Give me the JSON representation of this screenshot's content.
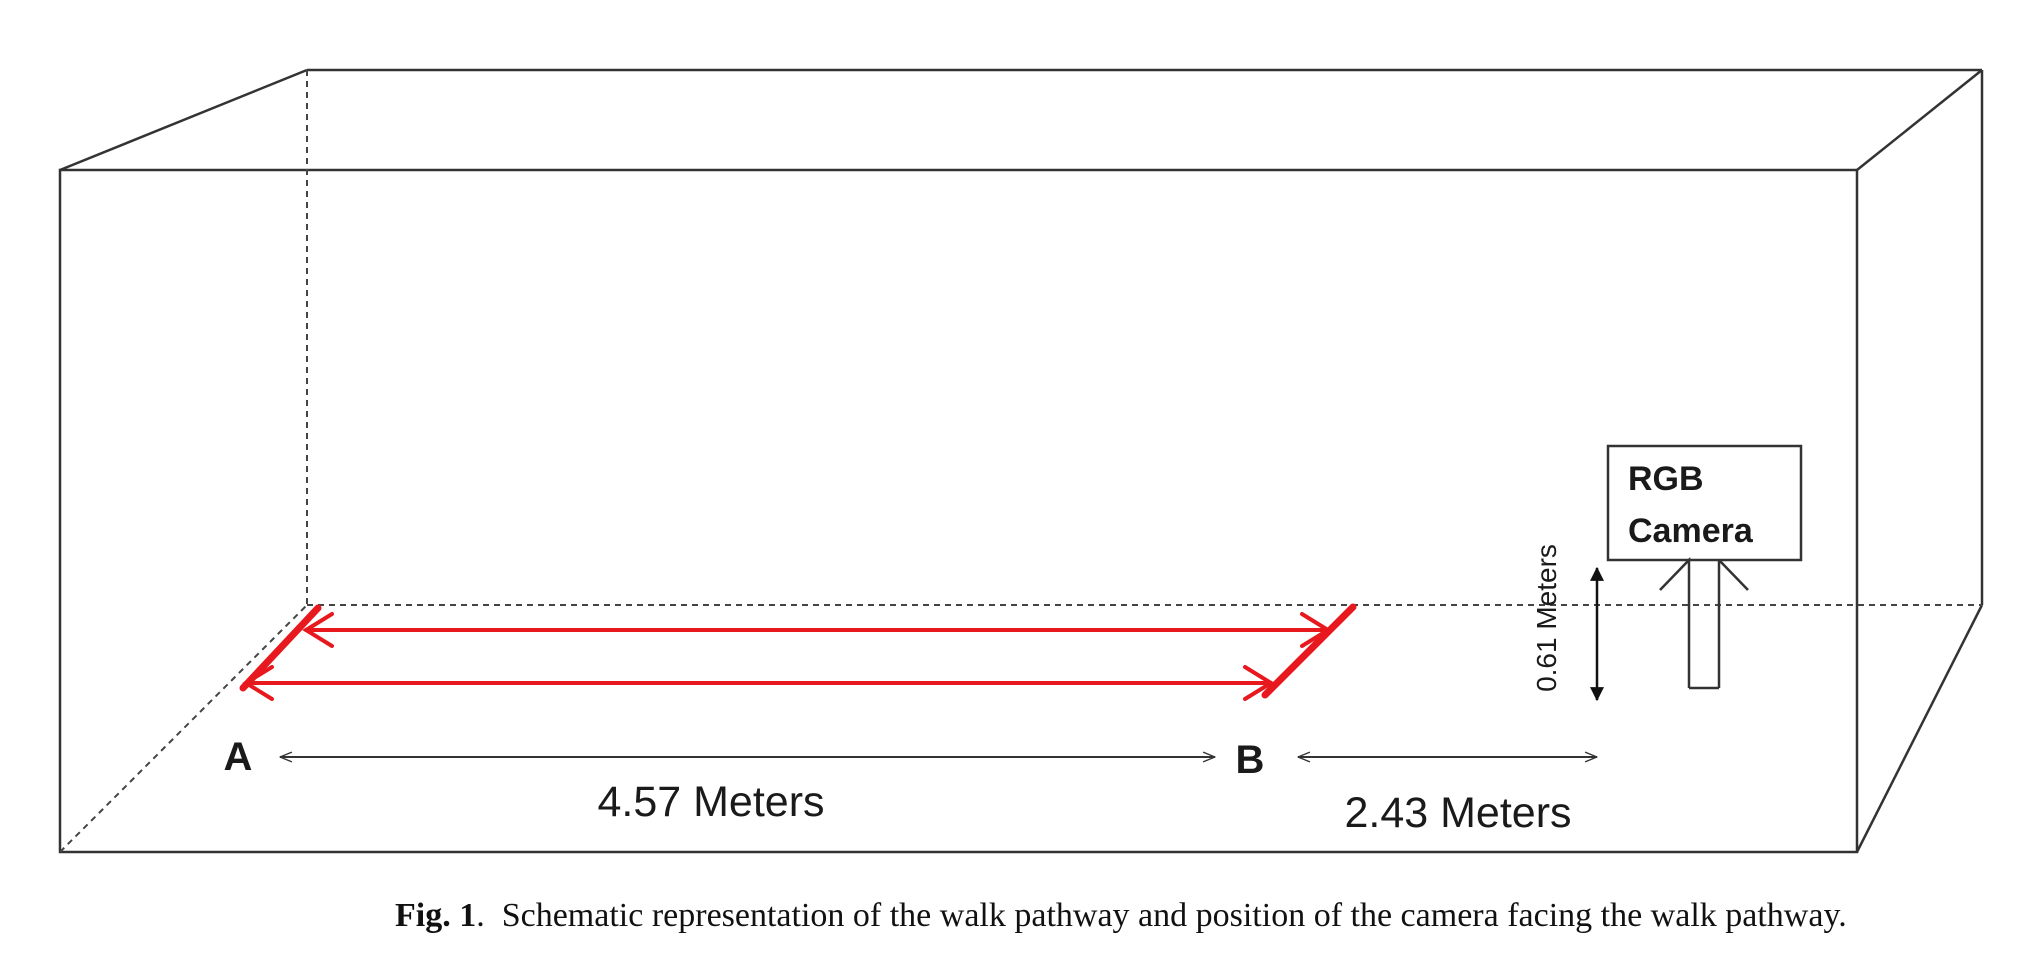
{
  "diagram": {
    "point_a": "A",
    "point_b": "B",
    "distance_ab": "4.57 Meters",
    "distance_b_camera": "2.43 Meters",
    "camera_height": "0.61 Meters",
    "camera_label_line1": "RGB",
    "camera_label_line2": "Camera",
    "colors": {
      "pathway": "#e8191e",
      "lines": "#333333"
    }
  },
  "caption": {
    "label": "Fig. 1",
    "separator": ".",
    "text": "Schematic representation of the walk pathway and position of the camera facing the walk pathway."
  }
}
